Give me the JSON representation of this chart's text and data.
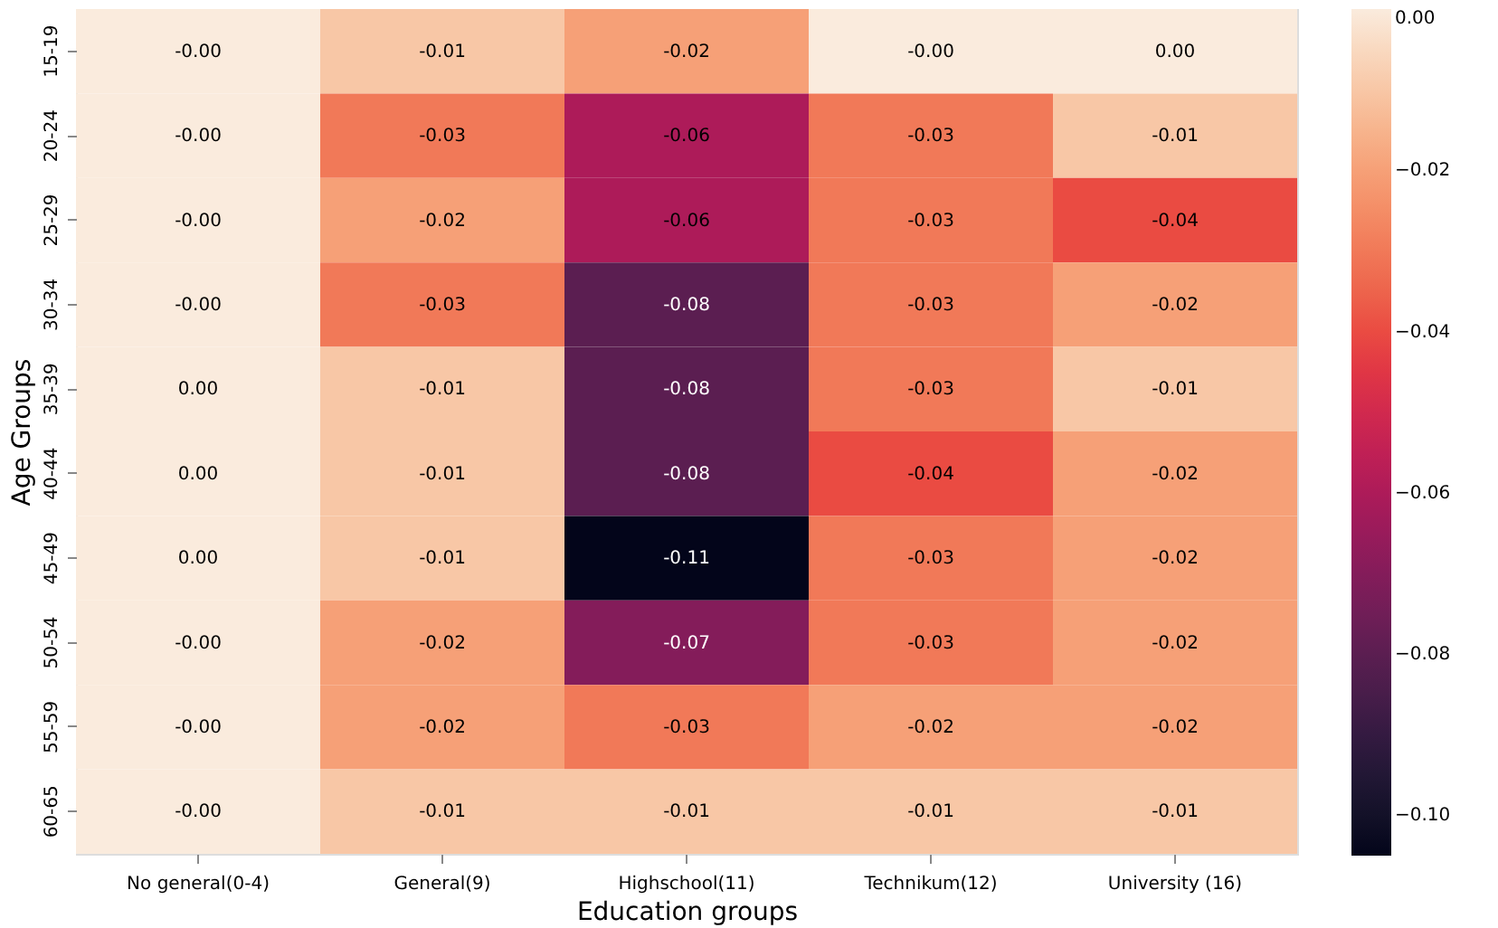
{
  "chart_data": {
    "type": "heatmap",
    "xlabel": "Education groups",
    "ylabel": "Age Groups",
    "categories": [
      "No general(0-4)",
      "General(9)",
      "Highschool(11)",
      "Technikum(12)",
      "University (16)"
    ],
    "y_categories": [
      "15-19",
      "20-24",
      "25-29",
      "30-34",
      "35-39",
      "40-44",
      "45-49",
      "50-54",
      "55-59",
      "60-65"
    ],
    "cells": [
      [
        0.0,
        -0.01,
        -0.02,
        0.0,
        0.0
      ],
      [
        0.0,
        -0.03,
        -0.06,
        -0.03,
        -0.01
      ],
      [
        0.0,
        -0.02,
        -0.06,
        -0.03,
        -0.04
      ],
      [
        0.0,
        -0.03,
        -0.08,
        -0.03,
        -0.02
      ],
      [
        0.0,
        -0.01,
        -0.08,
        -0.03,
        -0.01
      ],
      [
        0.0,
        -0.01,
        -0.08,
        -0.04,
        -0.02
      ],
      [
        0.0,
        -0.01,
        -0.105,
        -0.03,
        -0.02
      ],
      [
        0.0,
        -0.02,
        -0.07,
        -0.03,
        -0.02
      ],
      [
        0.0,
        -0.02,
        -0.03,
        -0.02,
        -0.02
      ],
      [
        0.0,
        -0.01,
        -0.01,
        -0.01,
        -0.01
      ]
    ],
    "cell_labels": [
      [
        "-0.00",
        "-0.01",
        "-0.02",
        "-0.00",
        "0.00"
      ],
      [
        "-0.00",
        "-0.03",
        "-0.06",
        "-0.03",
        "-0.01"
      ],
      [
        "-0.00",
        "-0.02",
        "-0.06",
        "-0.03",
        "-0.04"
      ],
      [
        "-0.00",
        "-0.03",
        "-0.08",
        "-0.03",
        "-0.02"
      ],
      [
        "0.00",
        "-0.01",
        "-0.08",
        "-0.03",
        "-0.01"
      ],
      [
        "0.00",
        "-0.01",
        "-0.08",
        "-0.04",
        "-0.02"
      ],
      [
        "0.00",
        "-0.01",
        "-0.11",
        "-0.03",
        "-0.02"
      ],
      [
        "-0.00",
        "-0.02",
        "-0.07",
        "-0.03",
        "-0.02"
      ],
      [
        "-0.00",
        "-0.02",
        "-0.03",
        "-0.02",
        "-0.02"
      ],
      [
        "-0.00",
        "-0.01",
        "-0.01",
        "-0.01",
        "-0.01"
      ]
    ],
    "clim": [
      -0.105,
      0.0
    ],
    "cticks": [
      {
        "value": 0.0,
        "label": "0.00"
      },
      {
        "value": -0.02,
        "label": "−0.02"
      },
      {
        "value": -0.04,
        "label": "−0.04"
      },
      {
        "value": -0.06,
        "label": "−0.06"
      },
      {
        "value": -0.08,
        "label": "−0.08"
      },
      {
        "value": -0.1,
        "label": "−0.10"
      }
    ]
  }
}
